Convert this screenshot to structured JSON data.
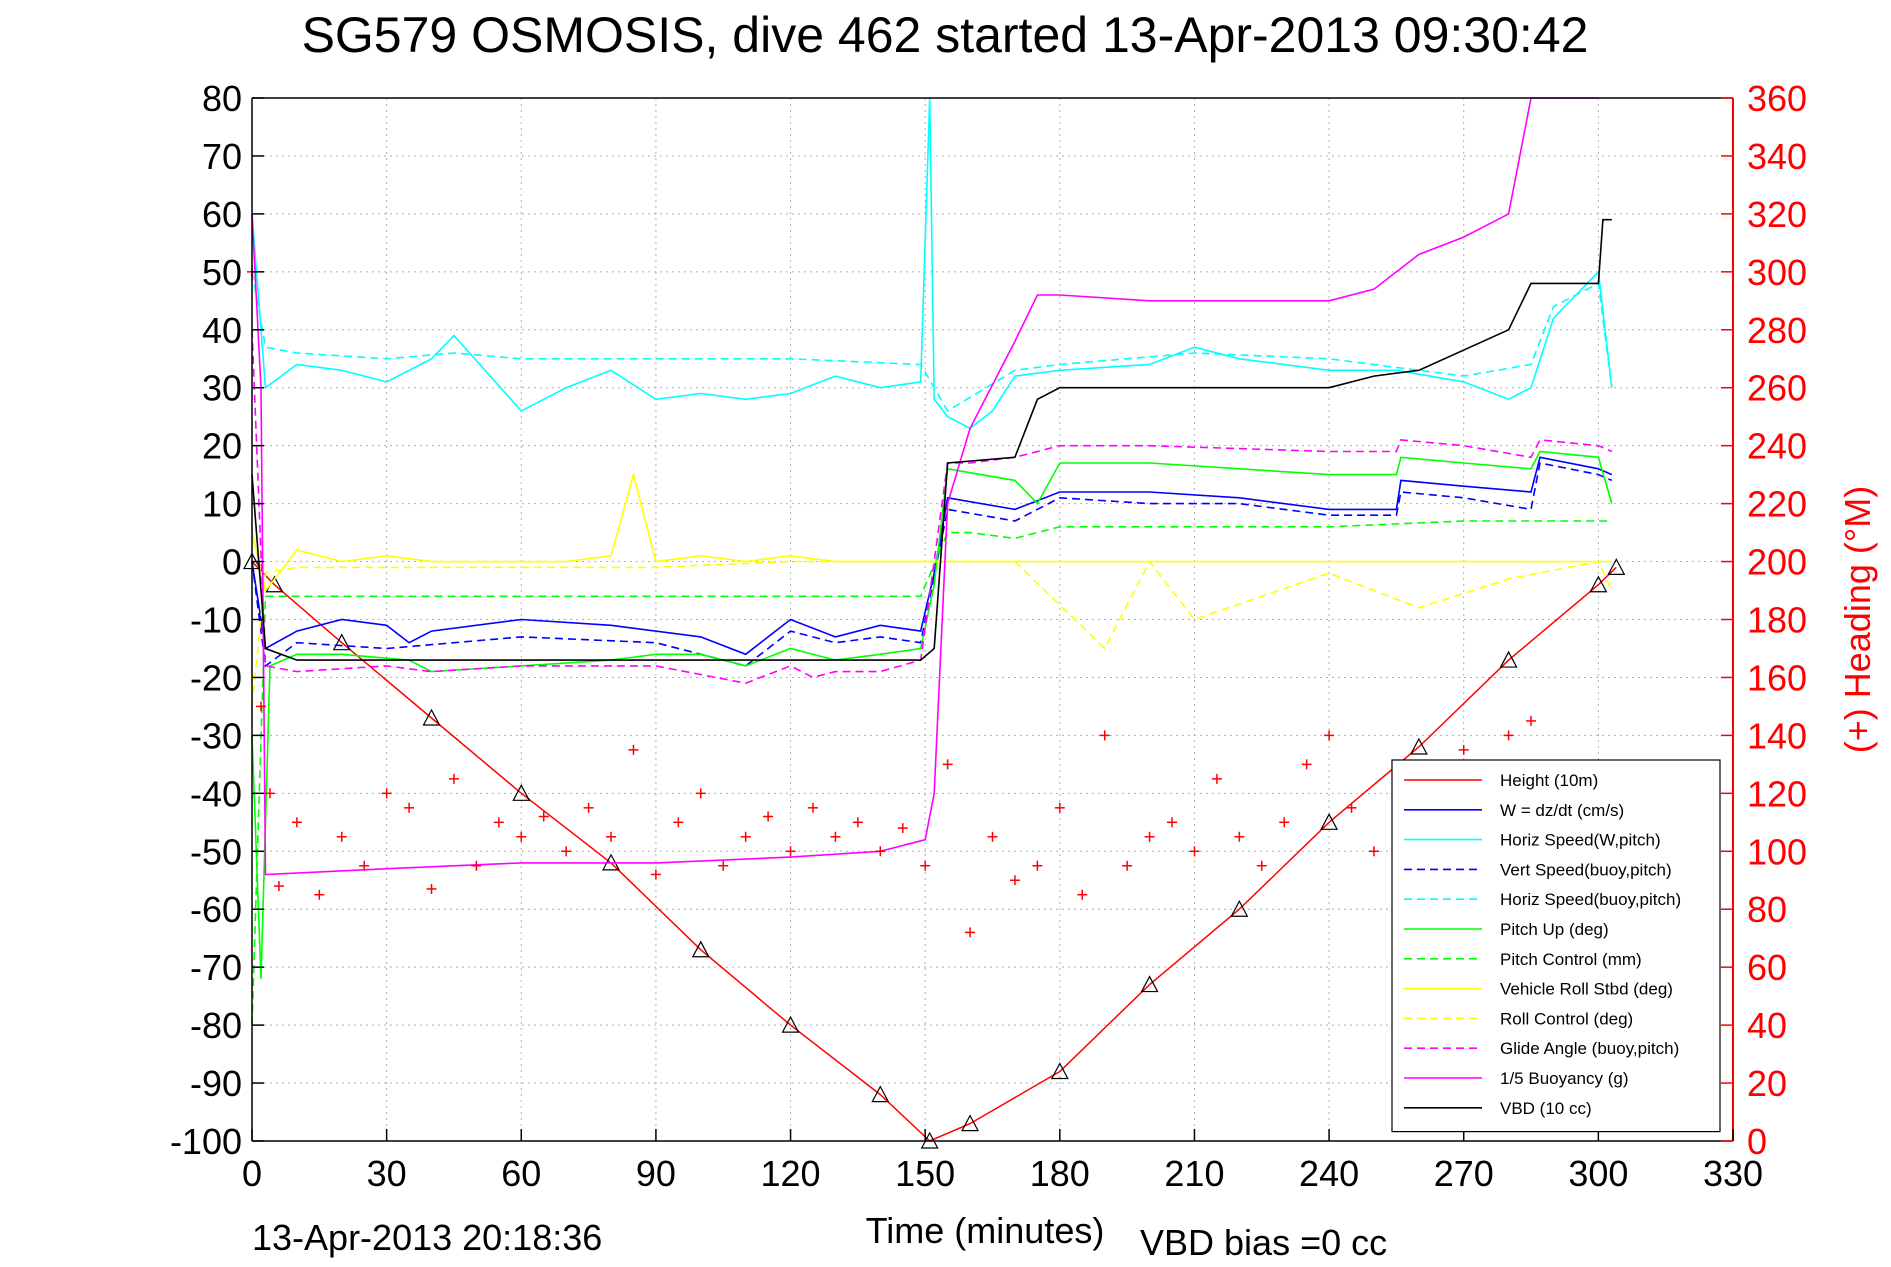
{
  "chart_data": {
    "type": "line",
    "title": "SG579 OSMOSIS, dive 462 started 13-Apr-2013 09:30:42",
    "xlabel": "Time (minutes)",
    "ylabel_right": "(+) Heading (°M)",
    "footer_left": "13-Apr-2013 20:18:36",
    "footer_right": "VBD bias =0 cc",
    "xlim": [
      0,
      330
    ],
    "ylim": [
      -100,
      80
    ],
    "ylim_right": [
      0,
      360
    ],
    "xticks": [
      0,
      30,
      60,
      90,
      120,
      150,
      180,
      210,
      240,
      270,
      300,
      330
    ],
    "yticks": [
      80,
      70,
      60,
      50,
      40,
      30,
      20,
      10,
      0,
      -10,
      -20,
      -30,
      -40,
      -50,
      -60,
      -70,
      -80,
      -90,
      -100
    ],
    "yticks_right": [
      360,
      340,
      320,
      300,
      280,
      260,
      240,
      220,
      200,
      180,
      160,
      140,
      120,
      100,
      80,
      60,
      40,
      20,
      0
    ],
    "grid": true,
    "legend_position": "bottom-right",
    "legend": [
      {
        "label": "Height (10m)",
        "color": "#ff0000",
        "dash": "solid"
      },
      {
        "label": "W = dz/dt (cm/s)",
        "color": "#0000ff",
        "dash": "solid"
      },
      {
        "label": "Horiz Speed(W,pitch)",
        "color": "#00ffff",
        "dash": "solid"
      },
      {
        "label": "Vert Speed(buoy,pitch)",
        "color": "#0000ff",
        "dash": "dashed"
      },
      {
        "label": "Horiz Speed(buoy,pitch)",
        "color": "#00ffff",
        "dash": "dashed"
      },
      {
        "label": "Pitch Up (deg)",
        "color": "#00ff00",
        "dash": "solid"
      },
      {
        "label": "Pitch Control (mm)",
        "color": "#00ff00",
        "dash": "dashed"
      },
      {
        "label": "Vehicle Roll Stbd (deg)",
        "color": "#ffff00",
        "dash": "solid"
      },
      {
        "label": "Roll Control (deg)",
        "color": "#ffff00",
        "dash": "dashed"
      },
      {
        "label": "Glide Angle (buoy,pitch)",
        "color": "#ff00ff",
        "dash": "dashed"
      },
      {
        "label": "1/5 Buoyancy (g)",
        "color": "#ff00ff",
        "dash": "solid"
      },
      {
        "label": "VBD (10 cc)",
        "color": "#000000",
        "dash": "solid"
      }
    ],
    "series": [
      {
        "name": "Height (10m)",
        "color": "#ff0000",
        "dash": "solid",
        "x": [
          0,
          5,
          20,
          40,
          60,
          80,
          100,
          120,
          140,
          151,
          160,
          180,
          200,
          220,
          240,
          260,
          280,
          300,
          304
        ],
        "y": [
          0,
          -4,
          -14,
          -27,
          -40,
          -52,
          -67,
          -80,
          -92,
          -100,
          -97,
          -88,
          -73,
          -60,
          -45,
          -32,
          -17,
          -4,
          -1
        ]
      },
      {
        "name": "W = dz/dt (cm/s)",
        "color": "#0000ff",
        "dash": "solid",
        "x": [
          0,
          3,
          10,
          20,
          30,
          35,
          40,
          60,
          80,
          100,
          110,
          120,
          130,
          140,
          149,
          152,
          155,
          170,
          180,
          200,
          220,
          240,
          255,
          256,
          270,
          285,
          287,
          300,
          303
        ],
        "y": [
          0,
          -15,
          -12,
          -10,
          -11,
          -14,
          -12,
          -10,
          -11,
          -13,
          -16,
          -10,
          -13,
          -11,
          -12,
          -2,
          11,
          9,
          12,
          12,
          11,
          9,
          9,
          14,
          13,
          12,
          18,
          16,
          15
        ]
      },
      {
        "name": "Horiz Speed(W,pitch)",
        "color": "#00ffff",
        "dash": "solid",
        "x": [
          0,
          3,
          10,
          20,
          30,
          40,
          45,
          60,
          70,
          80,
          90,
          100,
          110,
          120,
          130,
          140,
          149,
          151,
          152,
          155,
          160,
          165,
          170,
          180,
          200,
          210,
          220,
          240,
          255,
          270,
          280,
          285,
          290,
          295,
          300,
          303
        ],
        "y": [
          60,
          30,
          34,
          33,
          31,
          35,
          39,
          26,
          30,
          33,
          28,
          29,
          28,
          29,
          32,
          30,
          31,
          80,
          28,
          25,
          23,
          26,
          32,
          33,
          34,
          37,
          35,
          33,
          33,
          31,
          28,
          30,
          42,
          46,
          50,
          30
        ]
      },
      {
        "name": "Vert Speed(buoy,pitch)",
        "color": "#0000ff",
        "dash": "dashed",
        "x": [
          0,
          3,
          10,
          30,
          60,
          90,
          110,
          120,
          130,
          140,
          149,
          155,
          170,
          180,
          200,
          220,
          240,
          255,
          256,
          270,
          285,
          287,
          300,
          303
        ],
        "y": [
          0,
          -18,
          -14,
          -15,
          -13,
          -14,
          -18,
          -12,
          -14,
          -13,
          -14,
          9,
          7,
          11,
          10,
          10,
          8,
          8,
          12,
          11,
          9,
          17,
          15,
          14
        ]
      },
      {
        "name": "Horiz Speed(buoy,pitch)",
        "color": "#00ffff",
        "dash": "dashed",
        "x": [
          0,
          3,
          10,
          30,
          45,
          60,
          90,
          120,
          149,
          155,
          170,
          180,
          210,
          240,
          270,
          285,
          290,
          300,
          303
        ],
        "y": [
          50,
          37,
          36,
          35,
          36,
          35,
          35,
          35,
          34,
          26,
          33,
          34,
          36,
          35,
          32,
          34,
          44,
          48,
          30
        ]
      },
      {
        "name": "Pitch Up (deg)",
        "color": "#00ff00",
        "dash": "solid",
        "x": [
          0,
          2,
          4,
          10,
          20,
          35,
          40,
          60,
          80,
          90,
          100,
          110,
          120,
          130,
          140,
          149,
          152,
          155,
          170,
          175,
          180,
          200,
          240,
          255,
          256,
          270,
          285,
          287,
          300,
          303
        ],
        "y": [
          -30,
          -72,
          -18,
          -16,
          -16,
          -17,
          -19,
          -18,
          -17,
          -16,
          -16,
          -18,
          -15,
          -17,
          -16,
          -15,
          -4,
          16,
          14,
          10,
          17,
          17,
          15,
          15,
          18,
          17,
          16,
          19,
          18,
          10
        ]
      },
      {
        "name": "Pitch Control (mm)",
        "color": "#00ff00",
        "dash": "dashed",
        "x": [
          0,
          3,
          10,
          30,
          60,
          90,
          120,
          149,
          155,
          160,
          170,
          180,
          210,
          240,
          270,
          300,
          303
        ],
        "y": [
          -80,
          -6,
          -6,
          -6,
          -6,
          -6,
          -6,
          -6,
          5,
          5,
          4,
          6,
          6,
          6,
          7,
          7,
          7
        ]
      },
      {
        "name": "Vehicle Roll Stbd (deg)",
        "color": "#ffff00",
        "dash": "solid",
        "x": [
          0,
          3,
          10,
          20,
          30,
          40,
          50,
          60,
          70,
          80,
          85,
          90,
          100,
          110,
          120,
          130,
          140,
          149,
          155,
          160,
          170,
          180,
          190,
          200,
          210,
          220,
          230,
          240,
          250,
          260,
          270,
          280,
          290,
          300,
          303
        ],
        "y": [
          5,
          -5,
          2,
          0,
          1,
          0,
          0,
          0,
          0,
          1,
          15,
          0,
          1,
          0,
          1,
          0,
          0,
          0,
          0,
          0,
          0,
          0,
          0,
          0,
          0,
          0,
          0,
          0,
          0,
          0,
          0,
          0,
          0,
          0,
          0
        ]
      },
      {
        "name": "Roll Control (deg)",
        "color": "#ffff00",
        "dash": "dashed",
        "x": [
          0,
          3,
          10,
          30,
          60,
          90,
          120,
          149,
          155,
          160,
          170,
          190,
          200,
          210,
          240,
          260,
          280,
          300,
          303
        ],
        "y": [
          -25,
          -2,
          -1,
          -1,
          -1,
          -1,
          0,
          0,
          0,
          0,
          0,
          -15,
          0,
          -10,
          -2,
          -8,
          -3,
          0,
          -5
        ]
      },
      {
        "name": "Glide Angle (buoy,pitch)",
        "color": "#ff00ff",
        "dash": "dashed",
        "x": [
          0,
          3,
          10,
          30,
          40,
          60,
          90,
          110,
          120,
          125,
          130,
          140,
          149,
          155,
          160,
          170,
          180,
          200,
          240,
          255,
          256,
          270,
          285,
          287,
          300,
          303
        ],
        "y": [
          40,
          -18,
          -19,
          -18,
          -19,
          -18,
          -18,
          -21,
          -18,
          -20,
          -19,
          -19,
          -17,
          17,
          17,
          18,
          20,
          20,
          19,
          19,
          21,
          20,
          18,
          21,
          20,
          19
        ]
      },
      {
        "name": "1/5 Buoyancy (g)",
        "color": "#ff00ff",
        "dash": "solid",
        "x": [
          0,
          2,
          3,
          30,
          60,
          90,
          120,
          140,
          150,
          152,
          155,
          160,
          170,
          175,
          180,
          200,
          240,
          250,
          255,
          260,
          270,
          280,
          285,
          287,
          300
        ],
        "y": [
          60,
          30,
          -54,
          -53,
          -52,
          -52,
          -51,
          -50,
          -48,
          -40,
          10,
          23,
          38,
          46,
          46,
          45,
          45,
          47,
          50,
          53,
          56,
          60,
          80,
          80,
          80
        ]
      },
      {
        "name": "VBD (10 cc)",
        "color": "#000000",
        "dash": "solid",
        "x": [
          0,
          3,
          10,
          30,
          60,
          90,
          120,
          149,
          152,
          155,
          170,
          172,
          175,
          180,
          210,
          240,
          250,
          260,
          280,
          285,
          300,
          301,
          303
        ],
        "y": [
          15,
          -15,
          -17,
          -17,
          -17,
          -17,
          -17,
          -17,
          -15,
          17,
          18,
          22,
          28,
          30,
          30,
          30,
          32,
          33,
          40,
          48,
          48,
          59,
          59
        ]
      }
    ],
    "scatter": [
      {
        "name": "Heading",
        "marker": "+",
        "color": "#ff0000",
        "axis": "right",
        "x": [
          0,
          2,
          4,
          6,
          10,
          15,
          20,
          25,
          30,
          35,
          40,
          45,
          50,
          55,
          60,
          65,
          70,
          75,
          80,
          85,
          90,
          95,
          100,
          105,
          110,
          115,
          120,
          125,
          130,
          135,
          140,
          145,
          150,
          155,
          160,
          165,
          170,
          175,
          180,
          185,
          190,
          195,
          200,
          205,
          210,
          215,
          220,
          225,
          230,
          235,
          240,
          245,
          250,
          255,
          260,
          265,
          270,
          275,
          280,
          285
        ],
        "y": [
          300,
          150,
          120,
          88,
          110,
          85,
          105,
          95,
          120,
          115,
          87,
          125,
          95,
          110,
          105,
          112,
          100,
          115,
          105,
          135,
          92,
          110,
          120,
          95,
          105,
          112,
          100,
          115,
          105,
          110,
          100,
          108,
          95,
          130,
          72,
          105,
          90,
          95,
          115,
          85,
          140,
          95,
          105,
          110,
          100,
          125,
          105,
          95,
          110,
          130,
          140,
          115,
          100,
          130,
          120,
          105,
          135,
          120,
          140,
          145
        ]
      }
    ]
  }
}
